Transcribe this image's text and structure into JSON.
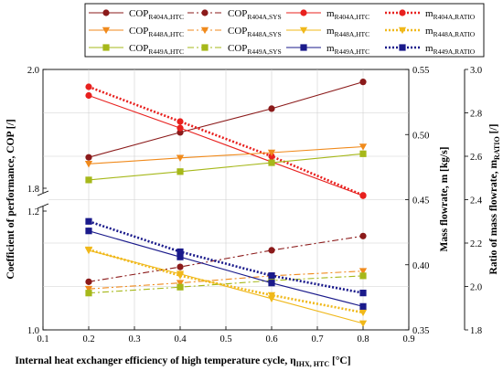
{
  "chart_data": {
    "type": "line",
    "xlabel": "Internal heat exchanger efficiency of high temperature cycle, η",
    "xlabel_sub": "IHX, HTC",
    "xlabel_unit": " [°C]",
    "ylabel_left": "Coefficient of performance, COP [/]",
    "ylabel_right1": "Mass flowrate, m [kg/s]",
    "ylabel_right2_main": "Ratio of mass flowrate, m",
    "ylabel_right2_sub": "RATIO",
    "ylabel_right2_unit": " [/]",
    "x_ticks": [
      "0.1",
      "0.2",
      "0.3",
      "0.4",
      "0.5",
      "0.6",
      "0.7",
      "0.8",
      "0.9"
    ],
    "x_tick_values": [
      0.1,
      0.2,
      0.3,
      0.4,
      0.5,
      0.6,
      0.7,
      0.8,
      0.9
    ],
    "xlim": [
      0.1,
      0.9
    ],
    "left_axis": {
      "upper_ticks": [
        "2.0",
        "1.8"
      ],
      "upper_range": [
        1.8,
        2.0
      ],
      "lower_ticks": [
        "1.2",
        "1.0"
      ],
      "lower_range": [
        1.0,
        1.2
      ]
    },
    "mass_axis": {
      "ticks": [
        "0.55",
        "0.50",
        "0.45",
        "0.40",
        "0.35"
      ],
      "ylim": [
        0.35,
        0.55
      ]
    },
    "ratio_axis": {
      "ticks": [
        "3.0",
        "2.8",
        "2.6",
        "2.4",
        "2.2",
        "2.0",
        "1.8"
      ],
      "ylim": [
        1.8,
        3.0
      ]
    },
    "x": [
      0.2,
      0.4,
      0.6,
      0.8
    ],
    "legend_position": "top",
    "series": [
      {
        "name": "COP",
        "sub": "R404A,HTC",
        "axis": "cop",
        "values": [
          1.852,
          1.894,
          1.934,
          1.979
        ],
        "color": "#8b1a1a",
        "style": "solid",
        "marker": "circle"
      },
      {
        "name": "COP",
        "sub": "R404A,SYS",
        "axis": "cop",
        "values": [
          1.081,
          1.106,
          1.134,
          1.158
        ],
        "color": "#8b1a1a",
        "style": "dashdot",
        "marker": "circle"
      },
      {
        "name": "m",
        "sub": "R404A,HTC",
        "axis": "mass",
        "values": [
          0.53,
          0.505,
          0.479,
          0.453
        ],
        "color": "#e8201e",
        "style": "solid",
        "marker": "circle"
      },
      {
        "name": "m",
        "sub": "R404A,RATIO",
        "axis": "ratio",
        "values": [
          2.92,
          2.76,
          2.6,
          2.42
        ],
        "color": "#e8201e",
        "style": "dotted",
        "marker": "circle"
      },
      {
        "name": "COP",
        "sub": "R448A,HTC",
        "axis": "cop",
        "values": [
          1.841,
          1.851,
          1.86,
          1.87
        ],
        "color": "#f08a1c",
        "style": "solid",
        "marker": "triangle"
      },
      {
        "name": "COP",
        "sub": "R448A,SYS",
        "axis": "cop",
        "values": [
          1.069,
          1.079,
          1.091,
          1.099
        ],
        "color": "#f08a1c",
        "style": "dashdot",
        "marker": "triangle"
      },
      {
        "name": "m",
        "sub": "R448A,HTC",
        "axis": "mass",
        "values": [
          0.411,
          0.393,
          0.374,
          0.355
        ],
        "color": "#f0b81a",
        "style": "solid",
        "marker": "triangle"
      },
      {
        "name": "m",
        "sub": "R448A,RATIO",
        "axis": "ratio",
        "values": [
          2.17,
          2.05,
          1.96,
          1.88
        ],
        "color": "#f0b81a",
        "style": "dotted",
        "marker": "triangle"
      },
      {
        "name": "COP",
        "sub": "R449A,HTC",
        "axis": "cop",
        "values": [
          1.814,
          1.828,
          1.843,
          1.858
        ],
        "color": "#a6b81a",
        "style": "solid",
        "marker": "square"
      },
      {
        "name": "COP",
        "sub": "R449A,SYS",
        "axis": "cop",
        "values": [
          1.062,
          1.072,
          1.083,
          1.091
        ],
        "color": "#a6b81a",
        "style": "dashdot",
        "marker": "square"
      },
      {
        "name": "m",
        "sub": "R449A,HTC",
        "axis": "mass",
        "values": [
          0.426,
          0.406,
          0.386,
          0.368
        ],
        "color": "#1a1a8b",
        "style": "solid",
        "marker": "square"
      },
      {
        "name": "m",
        "sub": "R449A,RATIO",
        "axis": "ratio",
        "values": [
          2.3,
          2.16,
          2.05,
          1.97
        ],
        "color": "#1a1a8b",
        "style": "dotted",
        "marker": "square"
      }
    ]
  }
}
